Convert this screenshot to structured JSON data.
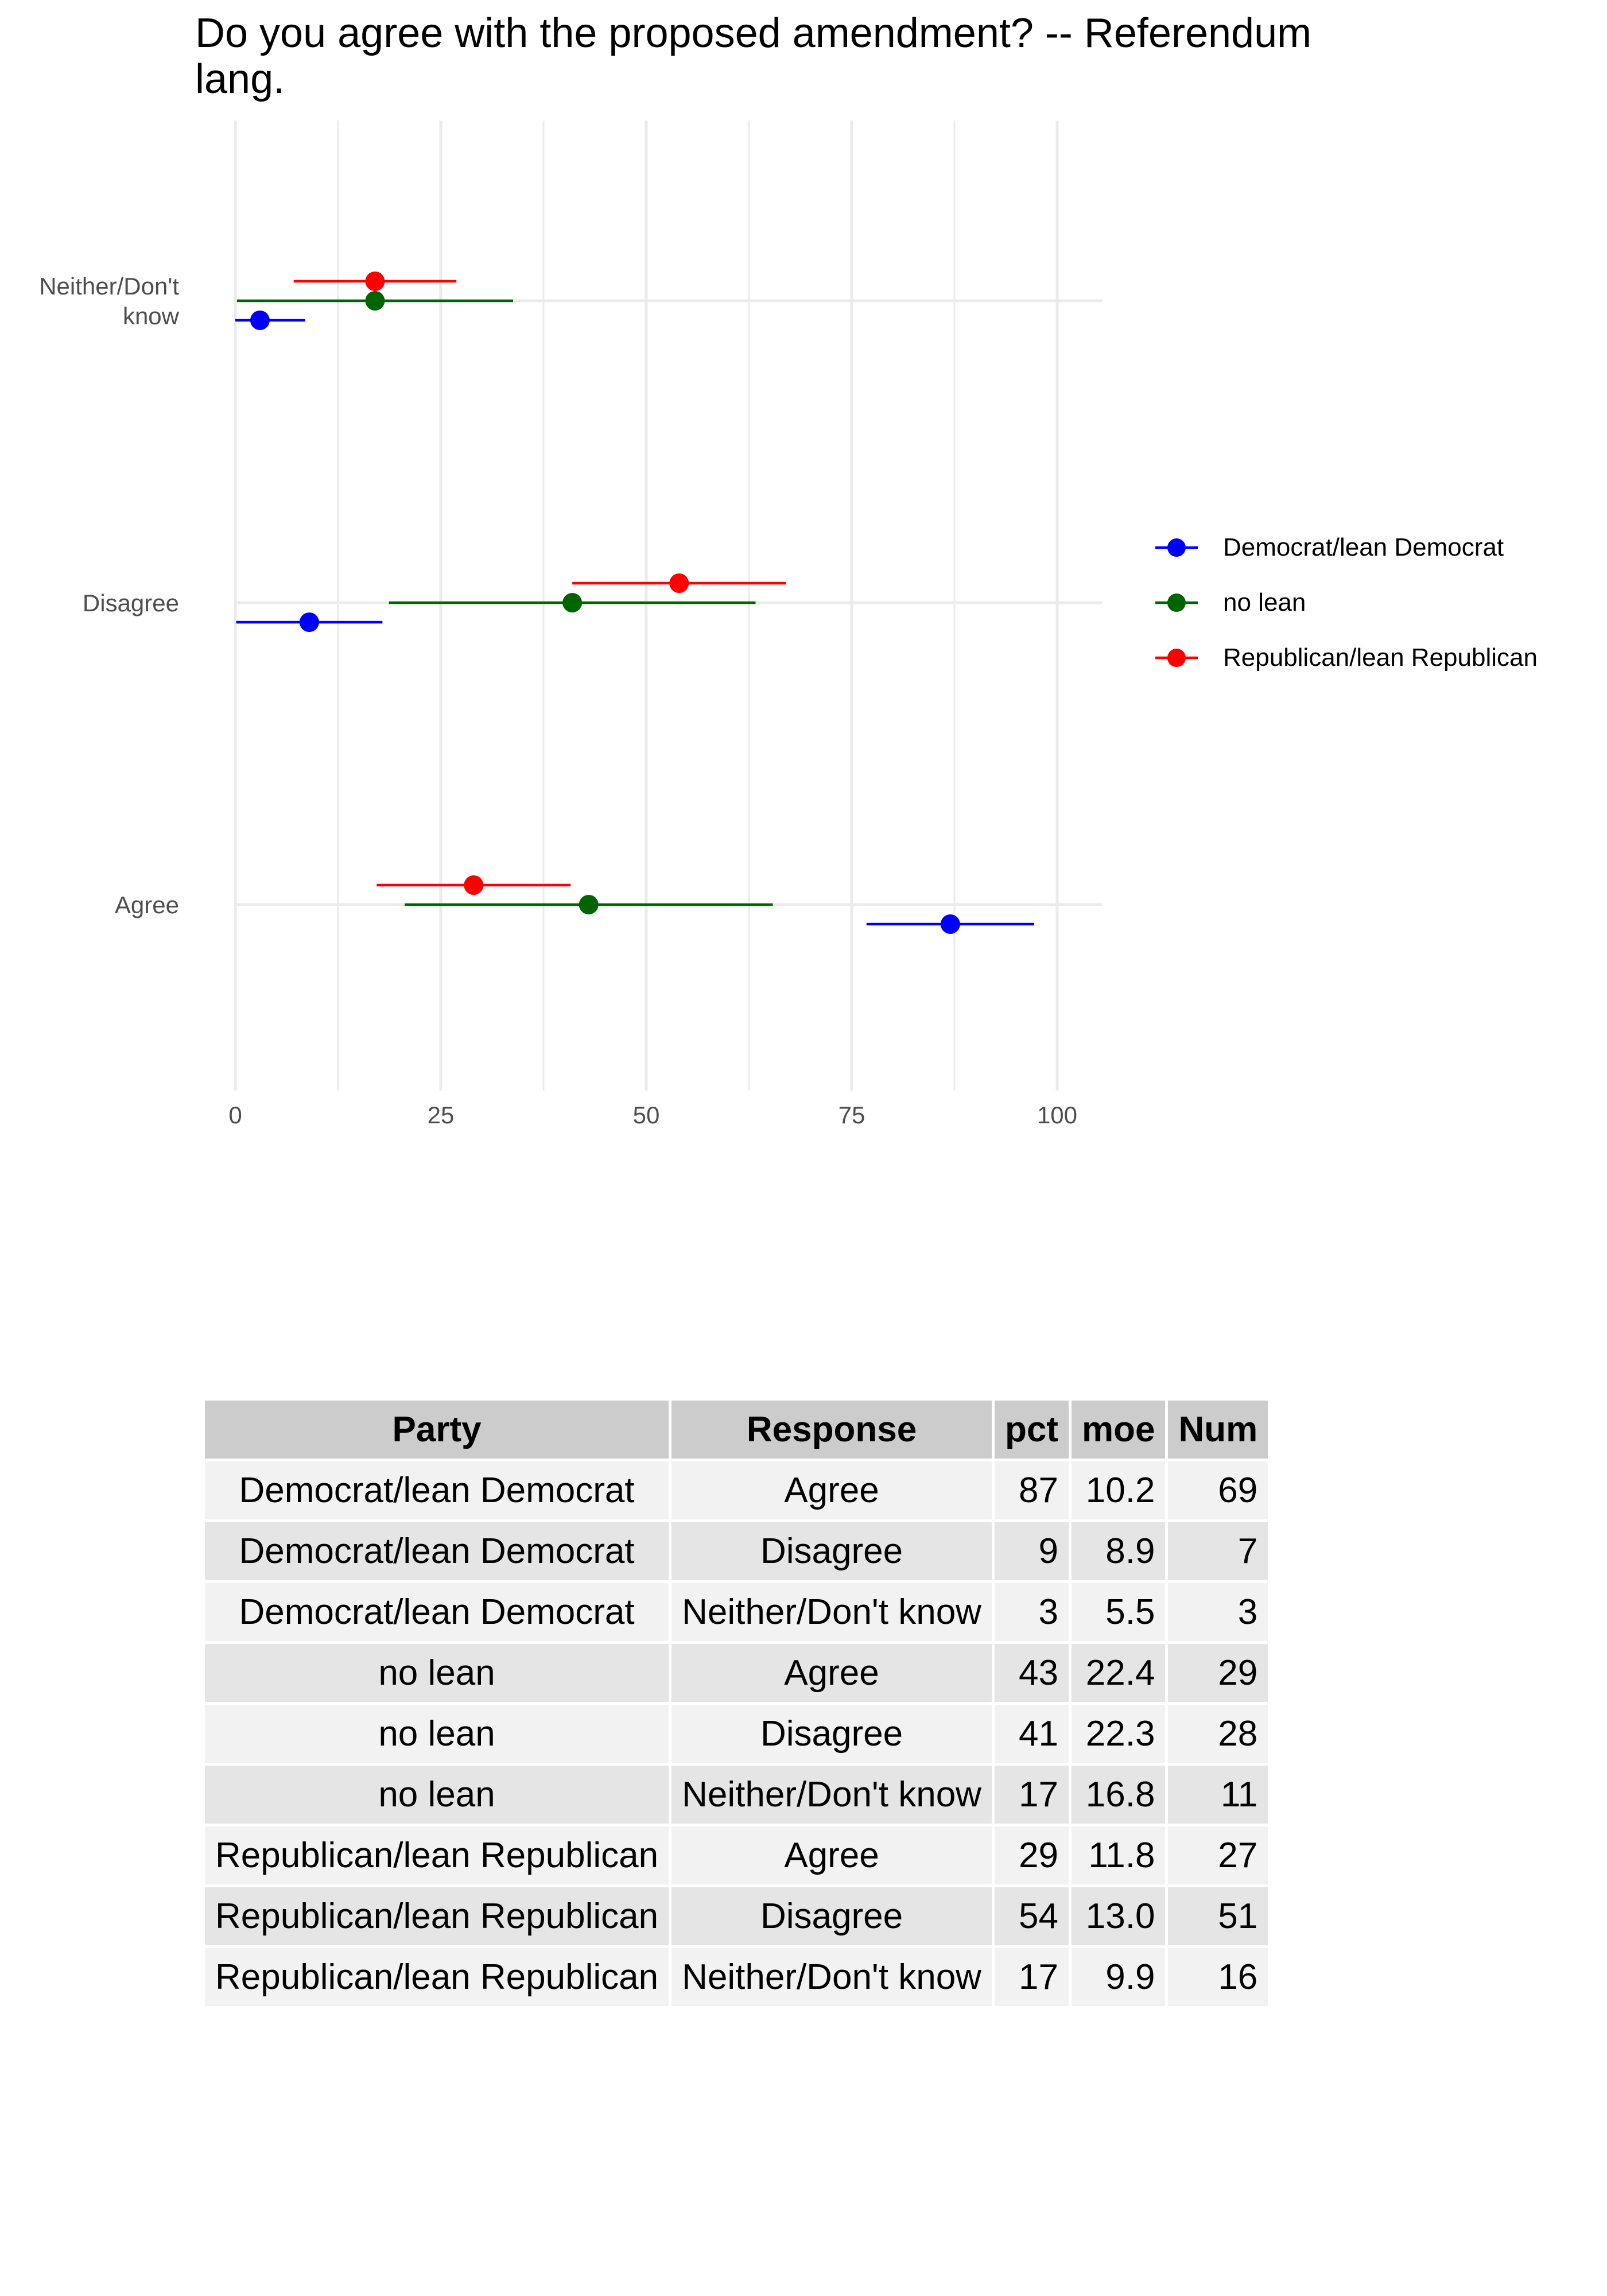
{
  "chart_data": {
    "type": "dot-errorbar",
    "title": "Do you agree with the proposed amendment? -- Referendum lang.",
    "xlabel": "",
    "ylabel": "",
    "xlim": [
      0,
      100
    ],
    "xticks": [
      0,
      25,
      50,
      75,
      100
    ],
    "categories": [
      "Agree",
      "Disagree",
      "Neither/Don't know"
    ],
    "y_tick_labels": [
      "Agree",
      "Disagree",
      "Neither/Don't\nknow"
    ],
    "grid": true,
    "legend_position": "right",
    "series": [
      {
        "name": "Democrat/lean Democrat",
        "color": "#0000ff",
        "values": [
          87,
          9,
          3
        ],
        "moe": [
          10.2,
          8.9,
          5.5
        ]
      },
      {
        "name": "no lean",
        "color": "#006400",
        "values": [
          43,
          41,
          17
        ],
        "moe": [
          22.4,
          22.3,
          16.8
        ]
      },
      {
        "name": "Republican/lean Republican",
        "color": "#ff0000",
        "values": [
          29,
          54,
          17
        ],
        "moe": [
          11.8,
          13.0,
          9.9
        ]
      }
    ]
  },
  "table": {
    "columns": [
      "Party",
      "Response",
      "pct",
      "moe",
      "Num"
    ],
    "rows": [
      [
        "Democrat/lean Democrat",
        "Agree",
        "87",
        "10.2",
        "69"
      ],
      [
        "Democrat/lean Democrat",
        "Disagree",
        "9",
        "8.9",
        "7"
      ],
      [
        "Democrat/lean Democrat",
        "Neither/Don't know",
        "3",
        "5.5",
        "3"
      ],
      [
        "no lean",
        "Agree",
        "43",
        "22.4",
        "29"
      ],
      [
        "no lean",
        "Disagree",
        "41",
        "22.3",
        "28"
      ],
      [
        "no lean",
        "Neither/Don't know",
        "17",
        "16.8",
        "11"
      ],
      [
        "Republican/lean Republican",
        "Agree",
        "29",
        "11.8",
        "27"
      ],
      [
        "Republican/lean Republican",
        "Disagree",
        "54",
        "13.0",
        "51"
      ],
      [
        "Republican/lean Republican",
        "Neither/Don't know",
        "17",
        "9.9",
        "16"
      ]
    ]
  }
}
